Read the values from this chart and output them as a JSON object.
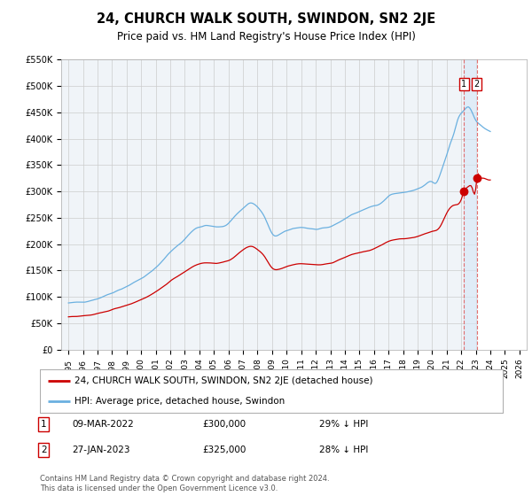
{
  "title": "24, CHURCH WALK SOUTH, SWINDON, SN2 2JE",
  "subtitle": "Price paid vs. HM Land Registry's House Price Index (HPI)",
  "legend1": "24, CHURCH WALK SOUTH, SWINDON, SN2 2JE (detached house)",
  "legend2": "HPI: Average price, detached house, Swindon",
  "footer": "Contains HM Land Registry data © Crown copyright and database right 2024.\nThis data is licensed under the Open Government Licence v3.0.",
  "table_rows": [
    {
      "num": "1",
      "date": "09-MAR-2022",
      "price": "£300,000",
      "pct": "29% ↓ HPI"
    },
    {
      "num": "2",
      "date": "27-JAN-2023",
      "price": "£325,000",
      "pct": "28% ↓ HPI"
    }
  ],
  "sale1_x": 2022.19,
  "sale1_y": 300000,
  "sale2_x": 2023.07,
  "sale2_y": 325000,
  "ylim": [
    0,
    550000
  ],
  "yticks": [
    0,
    50000,
    100000,
    150000,
    200000,
    250000,
    300000,
    350000,
    400000,
    450000,
    500000,
    550000
  ],
  "ytick_labels": [
    "£0",
    "£50K",
    "£100K",
    "£150K",
    "£200K",
    "£250K",
    "£300K",
    "£350K",
    "£400K",
    "£450K",
    "£500K",
    "£550K"
  ],
  "xlim": [
    1994.5,
    2026.5
  ],
  "xticks": [
    1995,
    1996,
    1997,
    1998,
    1999,
    2000,
    2001,
    2002,
    2003,
    2004,
    2005,
    2006,
    2007,
    2008,
    2009,
    2010,
    2011,
    2012,
    2013,
    2014,
    2015,
    2016,
    2017,
    2018,
    2019,
    2020,
    2021,
    2022,
    2023,
    2024,
    2025,
    2026
  ],
  "line_color_red": "#cc0000",
  "line_color_blue": "#6ab0e0",
  "bg_color": "#f0f4f8"
}
